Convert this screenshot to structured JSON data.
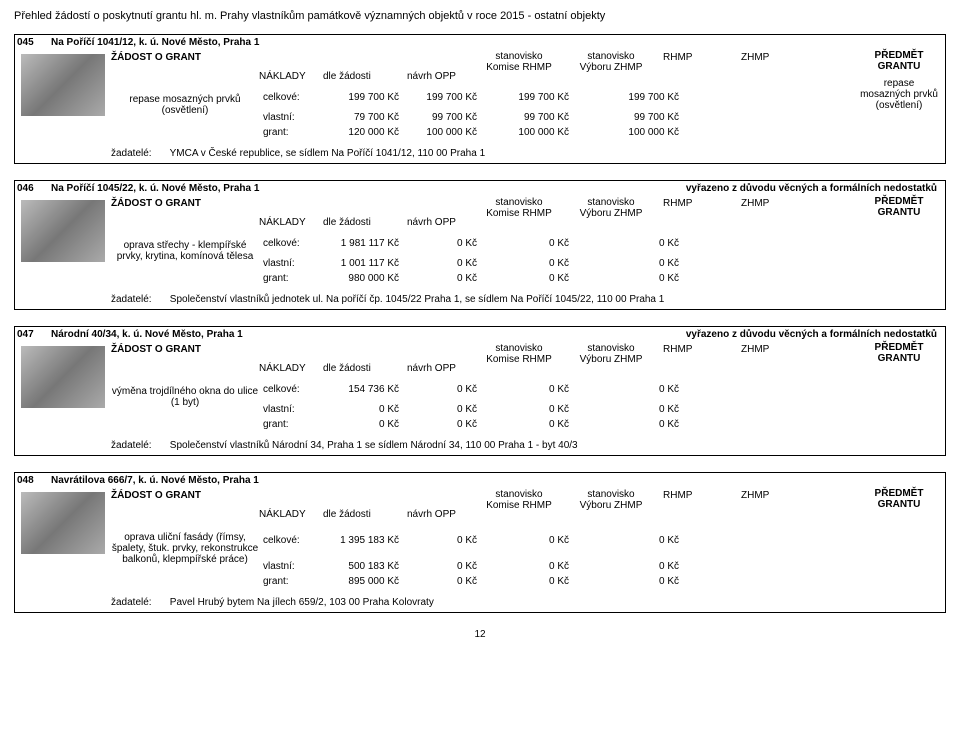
{
  "page_title": "Přehled žádostí o poskytnutí grantu hl. m. Prahy vlastníkům památkově významných objektů v roce 2015 - ostatní objekty",
  "page_number": "12",
  "labels": {
    "zadost": "ŽÁDOST O GRANT",
    "predmet": "PŘEDMĚT GRANTU",
    "naklady": "NÁKLADY",
    "dle_zadosti": "dle žádosti",
    "navrh_opp": "návrh OPP",
    "stanovisko": "stanovisko",
    "komise": "Komise RHMP",
    "vyboru": "Výboru ZHMP",
    "rhmp": "RHMP",
    "zhmp": "ZHMP",
    "celkove": "celkové:",
    "vlastni": "vlastní:",
    "grant": "grant:",
    "zadatele": "žadatelé:"
  },
  "entries": [
    {
      "num": "045",
      "address": "Na Poříčí 1041/12, k. ú. Nové Město, Praha 1",
      "reason": "",
      "desc": "repase mosazných prvků (osvětlení)",
      "subject": "repase mosazných prvků (osvětlení)",
      "rows": {
        "celkove": [
          "199 700 Kč",
          "199 700 Kč",
          "199 700 Kč",
          "199 700 Kč"
        ],
        "vlastni": [
          "79 700 Kč",
          "99 700 Kč",
          "99 700 Kč",
          "99 700 Kč"
        ],
        "grant": [
          "120 000 Kč",
          "100 000 Kč",
          "100 000 Kč",
          "100 000 Kč"
        ]
      },
      "applicant": "YMCA v České republice, se sídlem Na Poříčí 1041/12, 110 00 Praha 1"
    },
    {
      "num": "046",
      "address": "Na Poříčí 1045/22, k. ú. Nové Město, Praha 1",
      "reason": "vyřazeno z důvodu věcných a formálních nedostatků",
      "desc": "oprava střechy - klempířské prvky, krytina, komínová tělesa",
      "subject": "",
      "rows": {
        "celkove": [
          "1 981 117 Kč",
          "0 Kč",
          "0 Kč",
          "0 Kč"
        ],
        "vlastni": [
          "1 001 117 Kč",
          "0 Kč",
          "0 Kč",
          "0 Kč"
        ],
        "grant": [
          "980 000 Kč",
          "0 Kč",
          "0 Kč",
          "0 Kč"
        ]
      },
      "applicant": "Společenství vlastníků jednotek ul. Na poříčí čp. 1045/22 Praha 1, se sídlem Na Poříčí 1045/22, 110 00 Praha 1"
    },
    {
      "num": "047",
      "address": "Národní 40/34, k. ú. Nové Město, Praha 1",
      "reason": "vyřazeno z důvodu věcných a formálních nedostatků",
      "desc": "výměna trojdílného okna do ulice (1 byt)",
      "subject": "",
      "rows": {
        "celkove": [
          "154 736 Kč",
          "0 Kč",
          "0 Kč",
          "0 Kč"
        ],
        "vlastni": [
          "0 Kč",
          "0 Kč",
          "0 Kč",
          "0 Kč"
        ],
        "grant": [
          "0 Kč",
          "0 Kč",
          "0 Kč",
          "0 Kč"
        ]
      },
      "applicant": "Společenství vlastníků Národní 34, Praha 1 se sídlem Národní 34, 110 00 Praha 1  -  byt 40/3"
    },
    {
      "num": "048",
      "address": "Navrátilova 666/7, k. ú. Nové Město, Praha 1",
      "reason": "",
      "desc": "oprava uliční fasády (římsy, špalety, štuk. prvky, rekonstrukce balkonů, klepmpířské práce)",
      "subject": "",
      "rows": {
        "celkove": [
          "1 395 183 Kč",
          "0 Kč",
          "0 Kč",
          "0 Kč"
        ],
        "vlastni": [
          "500 183 Kč",
          "0 Kč",
          "0 Kč",
          "0 Kč"
        ],
        "grant": [
          "895 000 Kč",
          "0 Kč",
          "0 Kč",
          "0 Kč"
        ]
      },
      "applicant": "Pavel Hrubý bytem Na jílech 659/2, 103 00 Praha Kolovraty"
    }
  ]
}
